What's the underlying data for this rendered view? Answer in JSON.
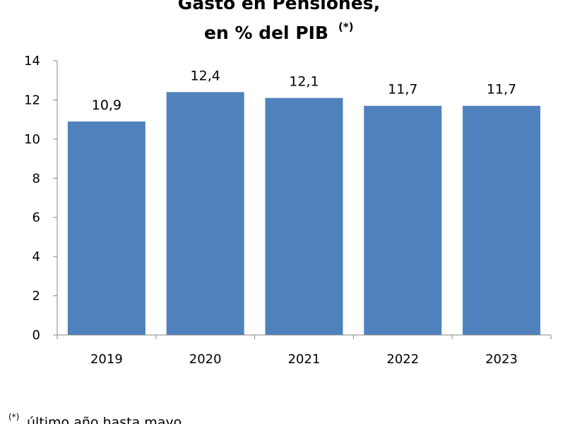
{
  "chart_data": {
    "type": "bar",
    "title_line1": "Gasto en Pensiones,",
    "title_line2": "en % del PIB",
    "title_marker": "(*)",
    "categories": [
      "2019",
      "2020",
      "2021",
      "2022",
      "2023"
    ],
    "values": [
      10.9,
      12.4,
      12.1,
      11.7,
      11.7
    ],
    "value_labels": [
      "10,9",
      "12,4",
      "12,1",
      "11,7",
      "11,7"
    ],
    "y_ticks": [
      0,
      2,
      4,
      6,
      8,
      10,
      12,
      14
    ],
    "ylim": [
      0,
      14
    ],
    "grid": false,
    "legend": "none",
    "bar_color": "#4F81BD",
    "axis_color": "#868686",
    "footnote_marker": "(*)",
    "footnote": "último año hasta mayo"
  }
}
